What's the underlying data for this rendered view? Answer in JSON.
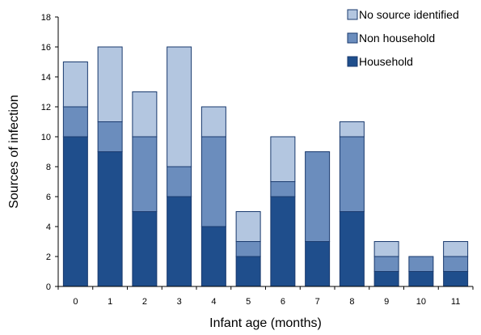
{
  "chart_data": {
    "type": "bar",
    "stacked": true,
    "title": "",
    "xlabel": "Infant age (months)",
    "ylabel": "Sources of infection",
    "ylim": [
      0,
      18
    ],
    "yticks": [
      0,
      2,
      4,
      6,
      8,
      10,
      12,
      14,
      16,
      18
    ],
    "grid": false,
    "legend_position": "top-right",
    "categories": [
      "0",
      "1",
      "2",
      "3",
      "4",
      "5",
      "6",
      "7",
      "8",
      "9",
      "10",
      "11"
    ],
    "series": [
      {
        "name": "Household",
        "color": "#1f4e8c",
        "values": [
          10,
          9,
          5,
          6,
          4,
          2,
          6,
          3,
          5,
          1,
          1,
          1
        ]
      },
      {
        "name": "Non household",
        "color": "#6b8dbd",
        "values": [
          2,
          2,
          5,
          2,
          6,
          1,
          1,
          6,
          5,
          1,
          1,
          1
        ]
      },
      {
        "name": "No source identified",
        "color": "#b3c6e0",
        "values": [
          3,
          5,
          3,
          8,
          2,
          2,
          3,
          0,
          1,
          1,
          0,
          1
        ]
      }
    ],
    "legend_order": [
      "No source identified",
      "Non household",
      "Household"
    ]
  }
}
